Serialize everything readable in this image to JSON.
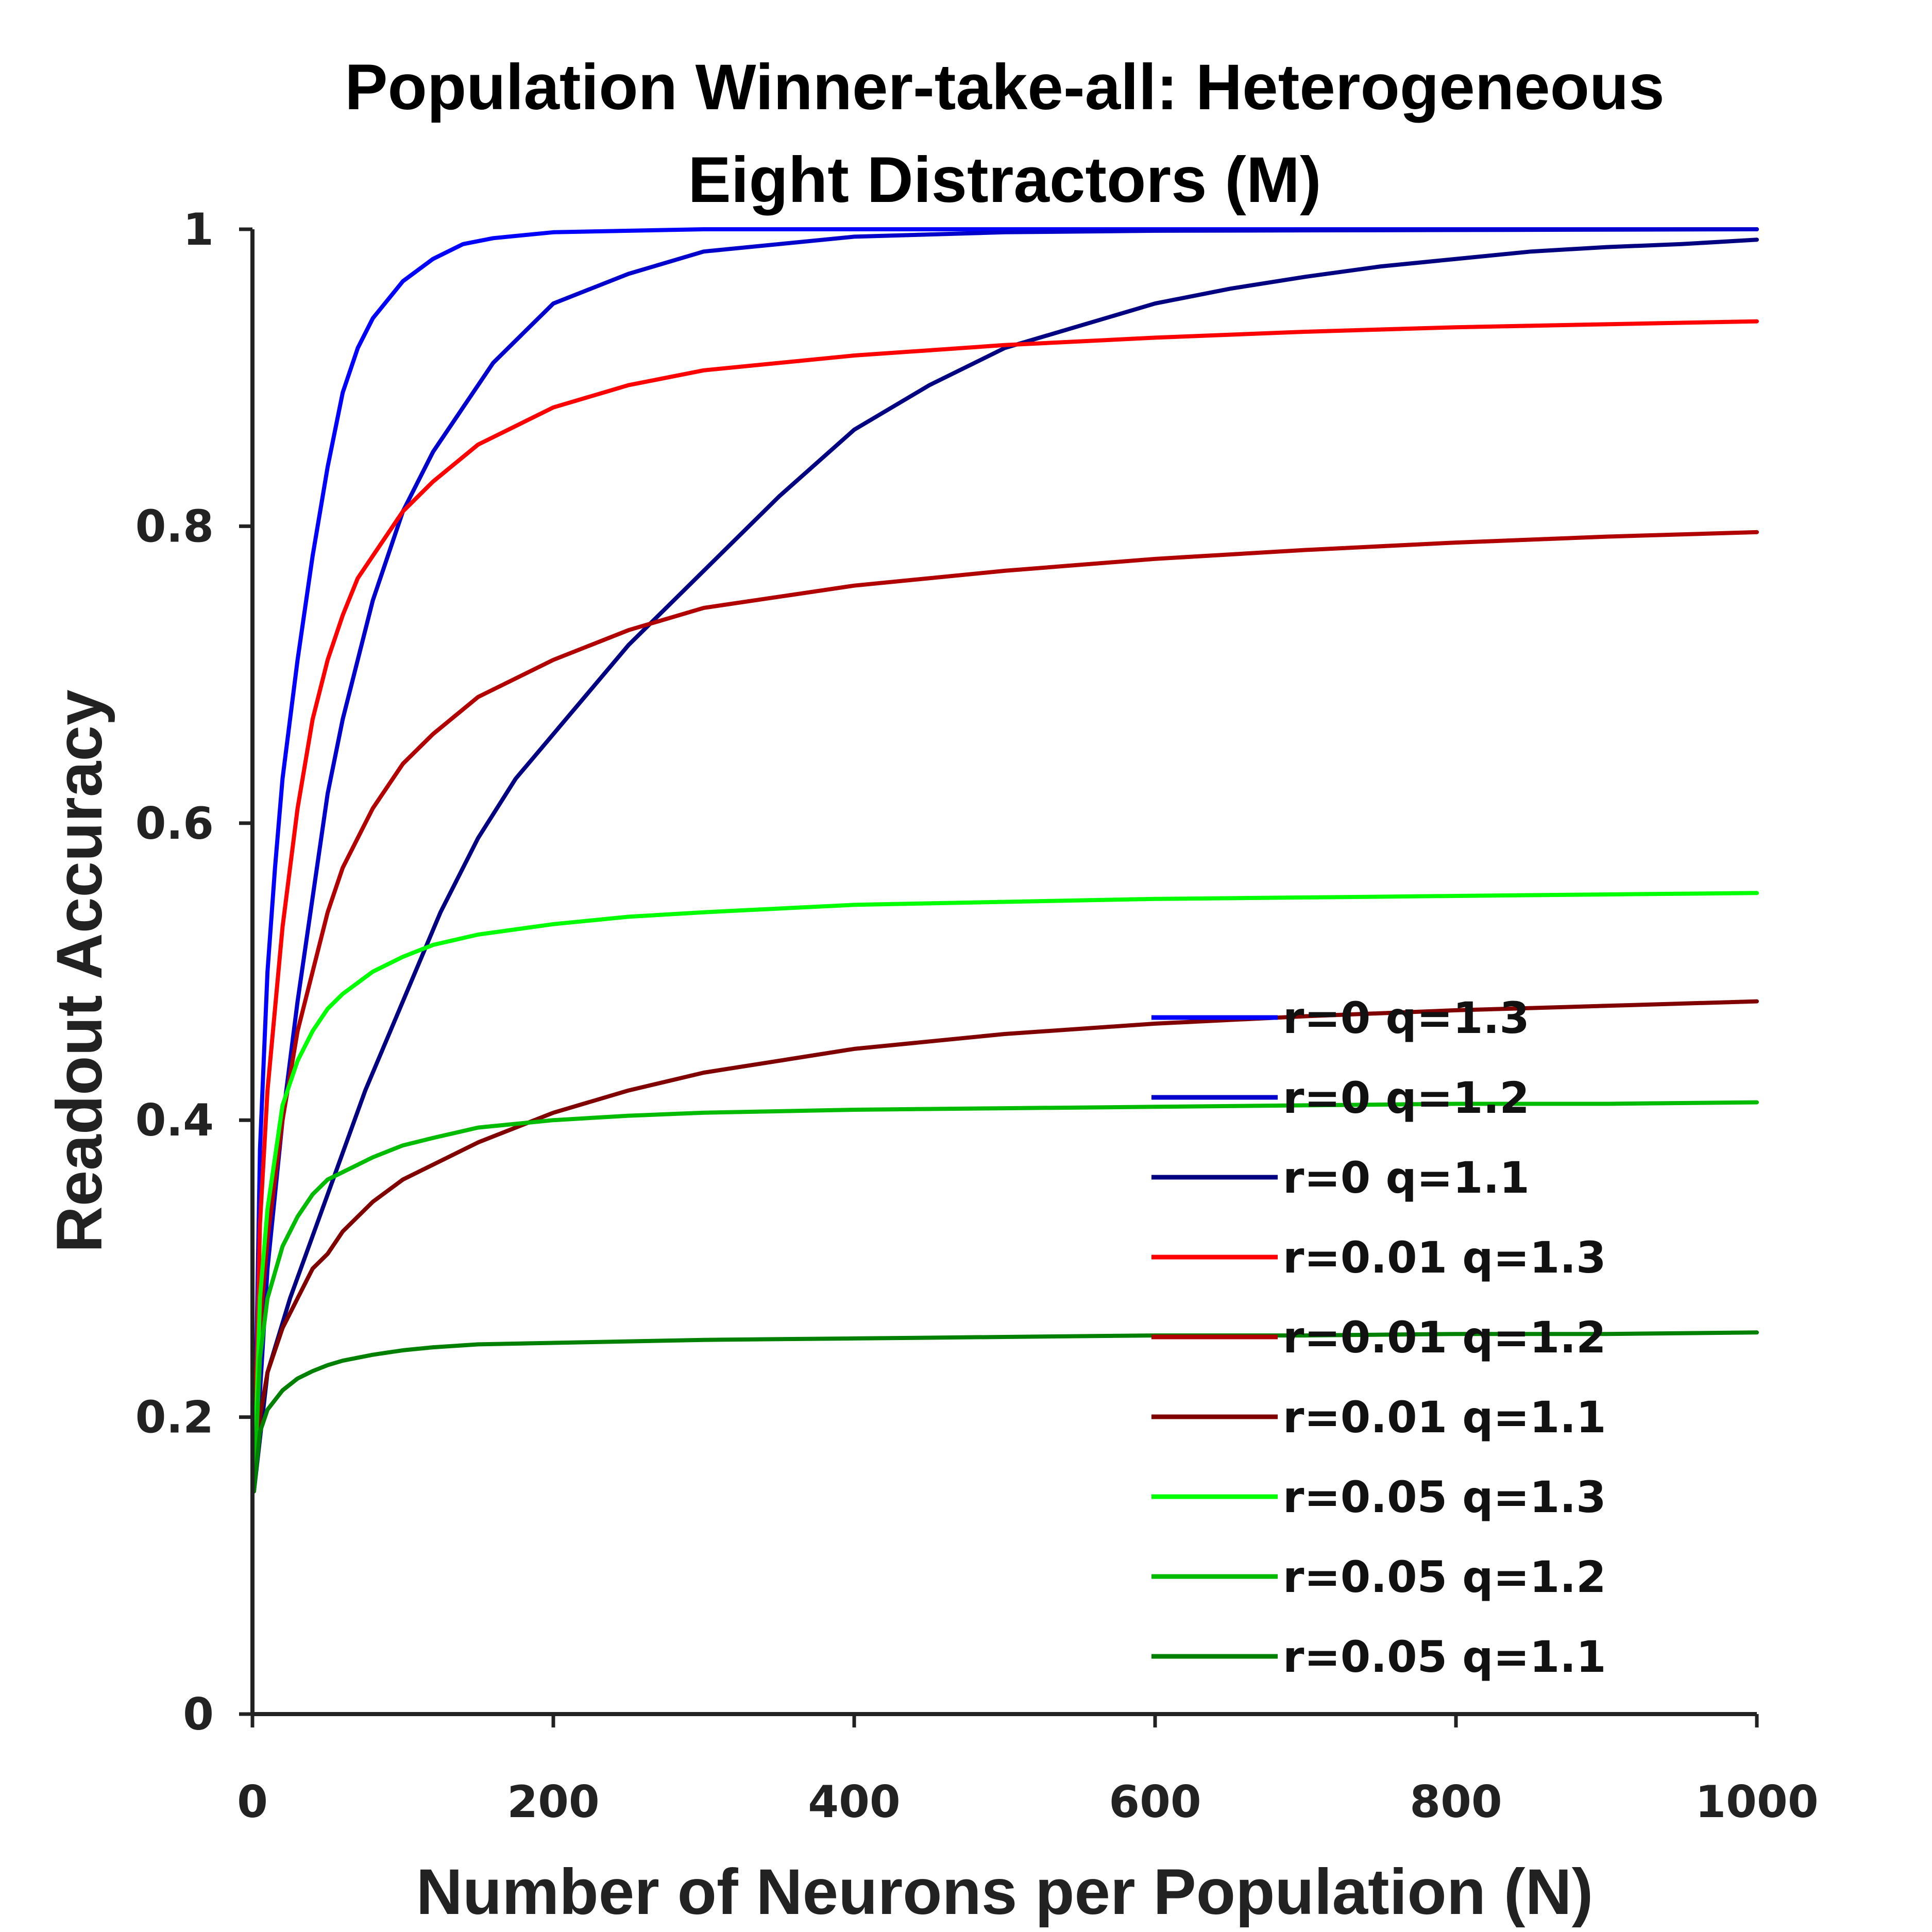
{
  "chart_data": {
    "type": "line",
    "title": [
      "Population Winner-take-all: Heterogeneous",
      "Eight Distractors (M)"
    ],
    "xlabel": "Number of Neurons per Population (N)",
    "ylabel": "Readout Accuracy",
    "xlim": [
      0,
      1000
    ],
    "ylim": [
      0,
      1
    ],
    "xticks": [
      0,
      200,
      400,
      600,
      800,
      1000
    ],
    "xtick_labels": [
      "0",
      "200",
      "400",
      "600",
      "800",
      "1000"
    ],
    "yticks": [
      0,
      0.2,
      0.4,
      0.6,
      0.8,
      1
    ],
    "ytick_labels": [
      "0",
      "0.2",
      "0.4",
      "0.6",
      "0.8",
      "1"
    ],
    "grid": false,
    "legend_position": "lower-right",
    "series": [
      {
        "name": "r=0 q=1.3",
        "color": "#0000ff",
        "x": [
          1,
          5,
          10,
          15,
          20,
          30,
          40,
          50,
          60,
          70,
          80,
          100,
          120,
          140,
          160,
          200,
          250,
          300,
          400,
          500,
          1000
        ],
        "y": [
          0.15,
          0.38,
          0.5,
          0.57,
          0.63,
          0.71,
          0.78,
          0.84,
          0.89,
          0.92,
          0.94,
          0.965,
          0.98,
          0.99,
          0.994,
          0.998,
          0.999,
          1,
          1,
          1,
          1
        ]
      },
      {
        "name": "r=0 q=1.2",
        "color": "#0000cc",
        "x": [
          1,
          10,
          20,
          30,
          40,
          50,
          60,
          70,
          80,
          100,
          120,
          140,
          160,
          180,
          200,
          250,
          300,
          350,
          400,
          500,
          600,
          1000
        ],
        "y": [
          0.15,
          0.3,
          0.4,
          0.48,
          0.55,
          0.62,
          0.67,
          0.71,
          0.75,
          0.81,
          0.85,
          0.88,
          0.91,
          0.93,
          0.95,
          0.97,
          0.985,
          0.99,
          0.995,
          0.998,
          0.999,
          1
        ]
      },
      {
        "name": "r=0 q=1.1",
        "color": "#000080",
        "x": [
          1,
          10,
          25,
          50,
          75,
          100,
          125,
          150,
          175,
          200,
          250,
          300,
          350,
          400,
          450,
          500,
          550,
          600,
          650,
          700,
          750,
          800,
          850,
          900,
          950,
          1000
        ],
        "y": [
          0.15,
          0.23,
          0.28,
          0.35,
          0.42,
          0.48,
          0.54,
          0.59,
          0.63,
          0.66,
          0.72,
          0.77,
          0.82,
          0.865,
          0.895,
          0.92,
          0.935,
          0.95,
          0.96,
          0.968,
          0.975,
          0.98,
          0.985,
          0.988,
          0.99,
          0.993
        ]
      },
      {
        "name": "r=0.01 q=1.3",
        "color": "#ff0000",
        "x": [
          1,
          5,
          10,
          20,
          30,
          40,
          50,
          60,
          70,
          80,
          100,
          120,
          150,
          180,
          200,
          250,
          300,
          400,
          500,
          600,
          700,
          800,
          900,
          1000
        ],
        "y": [
          0.15,
          0.33,
          0.42,
          0.53,
          0.61,
          0.67,
          0.71,
          0.74,
          0.765,
          0.78,
          0.81,
          0.83,
          0.855,
          0.87,
          0.88,
          0.895,
          0.905,
          0.915,
          0.922,
          0.927,
          0.931,
          0.934,
          0.936,
          0.938
        ]
      },
      {
        "name": "r=0.01 q=1.2",
        "color": "#b00000",
        "x": [
          1,
          5,
          10,
          20,
          30,
          40,
          50,
          60,
          70,
          80,
          100,
          120,
          150,
          200,
          250,
          300,
          400,
          500,
          600,
          700,
          800,
          900,
          1000
        ],
        "y": [
          0.15,
          0.26,
          0.32,
          0.4,
          0.46,
          0.5,
          0.54,
          0.57,
          0.59,
          0.61,
          0.64,
          0.66,
          0.685,
          0.71,
          0.73,
          0.745,
          0.76,
          0.77,
          0.778,
          0.784,
          0.789,
          0.793,
          0.796
        ]
      },
      {
        "name": "r=0.01 q=1.1",
        "color": "#800000",
        "x": [
          1,
          5,
          10,
          20,
          30,
          40,
          50,
          60,
          80,
          100,
          120,
          150,
          200,
          250,
          300,
          400,
          500,
          600,
          700,
          800,
          900,
          1000
        ],
        "y": [
          0.15,
          0.2,
          0.23,
          0.26,
          0.28,
          0.3,
          0.31,
          0.325,
          0.345,
          0.36,
          0.37,
          0.385,
          0.405,
          0.42,
          0.432,
          0.448,
          0.458,
          0.465,
          0.47,
          0.474,
          0.477,
          0.48
        ]
      },
      {
        "name": "r=0.05 q=1.3",
        "color": "#00ff00",
        "x": [
          1,
          5,
          10,
          20,
          30,
          40,
          50,
          60,
          80,
          100,
          120,
          150,
          200,
          250,
          300,
          400,
          500,
          600,
          700,
          800,
          900,
          1000
        ],
        "y": [
          0.15,
          0.28,
          0.34,
          0.41,
          0.44,
          0.46,
          0.475,
          0.485,
          0.5,
          0.51,
          0.518,
          0.525,
          0.532,
          0.537,
          0.54,
          0.545,
          0.547,
          0.549,
          0.55,
          0.551,
          0.552,
          0.553
        ]
      },
      {
        "name": "r=0.05 q=1.2",
        "color": "#00bb00",
        "x": [
          1,
          5,
          10,
          20,
          30,
          40,
          50,
          60,
          80,
          100,
          120,
          150,
          200,
          250,
          300,
          400,
          500,
          600,
          700,
          800,
          900,
          1000
        ],
        "y": [
          0.15,
          0.24,
          0.28,
          0.315,
          0.335,
          0.35,
          0.36,
          0.365,
          0.375,
          0.383,
          0.388,
          0.395,
          0.4,
          0.403,
          0.405,
          0.407,
          0.408,
          0.409,
          0.41,
          0.411,
          0.411,
          0.412
        ]
      },
      {
        "name": "r=0.05 q=1.1",
        "color": "#008000",
        "x": [
          1,
          5,
          10,
          20,
          30,
          40,
          50,
          60,
          80,
          100,
          120,
          150,
          200,
          300,
          400,
          500,
          600,
          700,
          800,
          900,
          1000
        ],
        "y": [
          0.15,
          0.19,
          0.205,
          0.218,
          0.226,
          0.231,
          0.235,
          0.238,
          0.242,
          0.245,
          0.247,
          0.249,
          0.25,
          0.252,
          0.253,
          0.254,
          0.255,
          0.255,
          0.256,
          0.256,
          0.257
        ]
      }
    ]
  }
}
